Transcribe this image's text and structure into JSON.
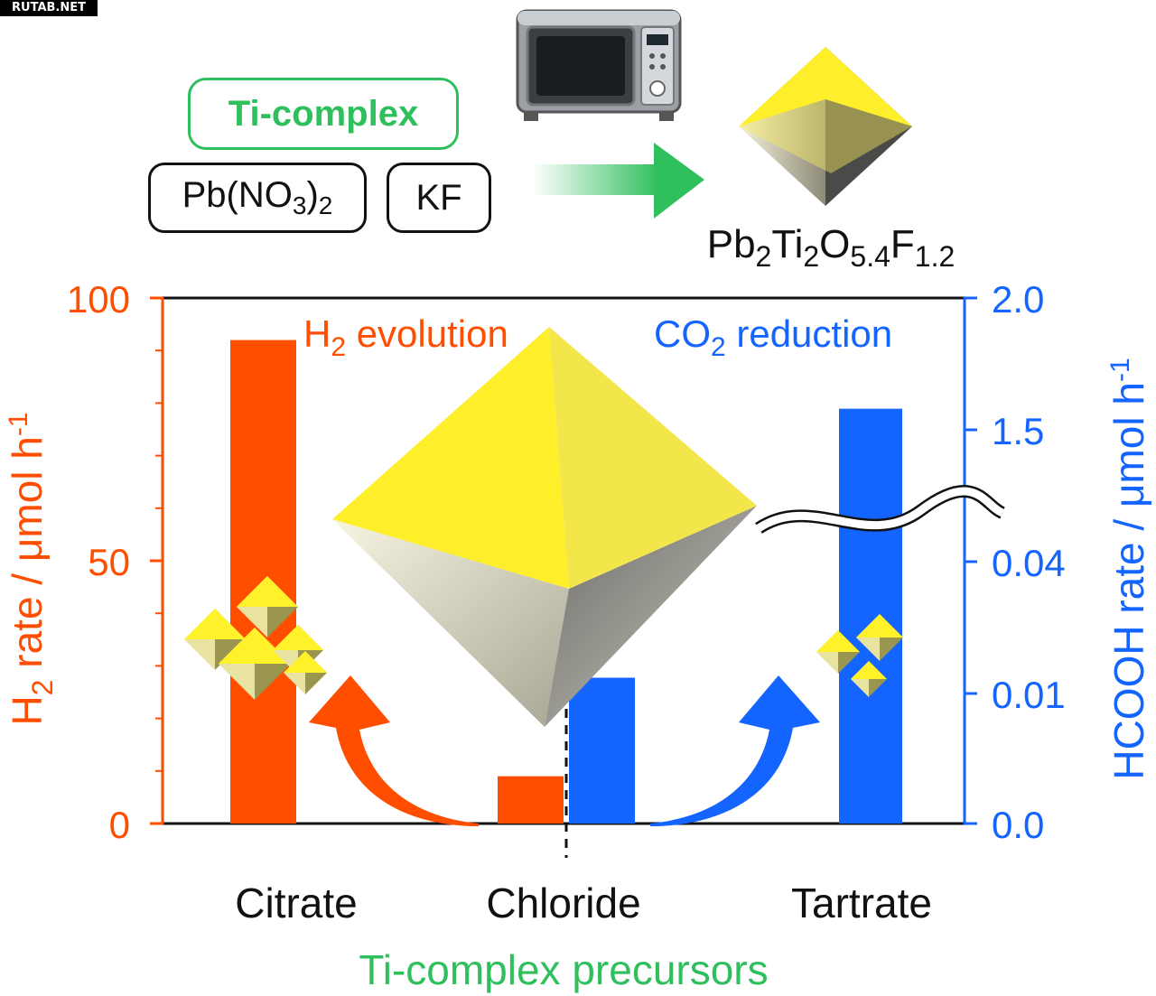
{
  "watermark": "RUTAB.NET",
  "scheme": {
    "ticomplex": "Ti-complex",
    "pb_main": "Pb(NO",
    "pb_sub1": "3",
    "pb_close": ")",
    "pb_sub2": "2",
    "kf": "KF",
    "product_parts": [
      {
        "t": "Pb",
        "sub": false
      },
      {
        "t": "2",
        "sub": true
      },
      {
        "t": "Ti",
        "sub": false
      },
      {
        "t": "2",
        "sub": true
      },
      {
        "t": "O",
        "sub": false
      },
      {
        "t": "5.4",
        "sub": true
      },
      {
        "t": "F",
        "sub": false
      },
      {
        "t": "1.2",
        "sub": true
      }
    ]
  },
  "chart_data": {
    "type": "bar",
    "categories": [
      "Citrate",
      "Chloride",
      "Tartrate"
    ],
    "xlabel": "Ti-complex precursors",
    "left_axis": {
      "label_main": "H",
      "label_sub": "2",
      "label_rest": " rate / μmol h",
      "label_sup": "-1",
      "ylim": [
        0,
        100
      ],
      "ticks": [
        "0",
        "50",
        "100"
      ],
      "color": "#ff4e00"
    },
    "right_axis": {
      "label_main": "HCOOH rate / μmol h",
      "label_sup": "-1",
      "broken": true,
      "lower_ylim": [
        0,
        0.05
      ],
      "upper_ylim": [
        1.0,
        2.0
      ],
      "ticks": [
        "0.0",
        "0.01",
        "0.04",
        "1.5",
        "2.0"
      ],
      "color": "#1464ff"
    },
    "series": [
      {
        "name_main": "H",
        "name_sub": "2",
        "name_rest": " evolution",
        "axis": "left",
        "color": "#ff4e00",
        "values": [
          92,
          9,
          null
        ]
      },
      {
        "name_main": "CO",
        "name_sub": "2",
        "name_rest": " reduction",
        "axis": "right",
        "color": "#1464ff",
        "values": [
          null,
          0.022,
          1.58
        ]
      }
    ],
    "grid": false
  }
}
